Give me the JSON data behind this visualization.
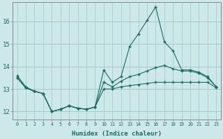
{
  "xlabel": "Humidex (Indice chaleur)",
  "background_color": "#cce8e8",
  "line_color": "#1a6b60",
  "grid_color": "#b0d4d4",
  "red_line_color": "#cc8888",
  "x_values": [
    0,
    1,
    2,
    3,
    4,
    5,
    6,
    7,
    8,
    9,
    10,
    11,
    12,
    13,
    14,
    15,
    16,
    17,
    18,
    19,
    20,
    21,
    22,
    23
  ],
  "y_top": [
    13.6,
    13.1,
    12.9,
    12.8,
    12.0,
    12.1,
    12.25,
    12.15,
    12.1,
    12.2,
    13.85,
    13.3,
    13.55,
    14.9,
    15.45,
    16.05,
    16.65,
    15.1,
    14.7,
    13.85,
    13.85,
    13.75,
    13.55,
    13.1
  ],
  "y_mid": [
    13.5,
    13.05,
    12.9,
    12.8,
    12.0,
    12.1,
    12.25,
    12.15,
    12.1,
    12.2,
    13.3,
    13.1,
    13.35,
    13.55,
    13.65,
    13.8,
    13.95,
    14.05,
    13.9,
    13.8,
    13.8,
    13.7,
    13.5,
    13.1
  ],
  "y_bot": [
    13.5,
    13.05,
    12.9,
    12.8,
    12.0,
    12.1,
    12.25,
    12.15,
    12.1,
    12.2,
    13.0,
    13.0,
    13.1,
    13.15,
    13.2,
    13.25,
    13.3,
    13.3,
    13.3,
    13.3,
    13.3,
    13.3,
    13.3,
    13.05
  ],
  "ylim": [
    11.65,
    16.85
  ],
  "yticks": [
    12,
    13,
    14,
    15,
    16
  ],
  "xticks": [
    0,
    1,
    2,
    3,
    4,
    5,
    6,
    7,
    8,
    9,
    10,
    11,
    12,
    13,
    14,
    15,
    16,
    17,
    18,
    19,
    20,
    21,
    22,
    23
  ]
}
